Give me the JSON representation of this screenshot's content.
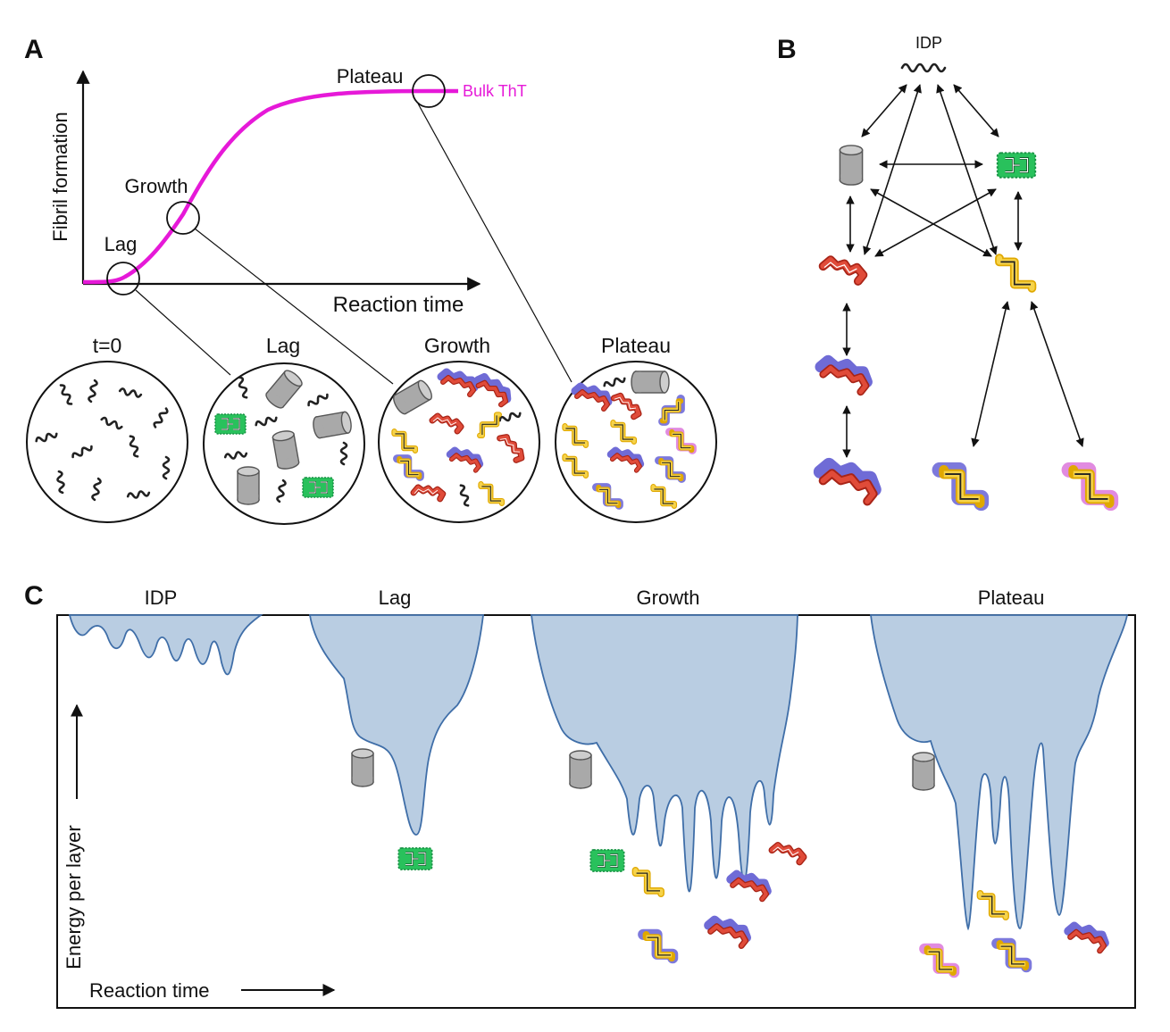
{
  "panels": {
    "a": {
      "letter": "A",
      "y_axis_label": "Fibril formation",
      "x_axis_label": "Reaction time",
      "curve_label": "Bulk ThT",
      "stage_labels": [
        "Lag",
        "Growth",
        "Plateau"
      ],
      "circle_labels": [
        "t=0",
        "Lag",
        "Growth",
        "Plateau"
      ]
    },
    "b": {
      "letter": "B",
      "top_label": "IDP"
    },
    "c": {
      "letter": "C",
      "section_labels": [
        "IDP",
        "Lag",
        "Growth",
        "Plateau"
      ],
      "y_axis_label": "Energy per layer",
      "x_axis_label": "Reaction time"
    }
  },
  "colors": {
    "sigmoid": "#e619d8",
    "landscape_fill": "#b9cde2",
    "landscape_stroke": "#3f6ea8",
    "fibril_red": "#d63b2c",
    "fibril_blue": "#8a86e0",
    "fibril_yellow": "#f1c21b",
    "fibril_green": "#29c15c",
    "fibril_pink": "#e48ee0",
    "oligomer_gray": "#a9a9a9"
  },
  "icons": [
    "idp-squiggle-icon",
    "oligomer-cylinder-icon",
    "fibril-icon"
  ]
}
